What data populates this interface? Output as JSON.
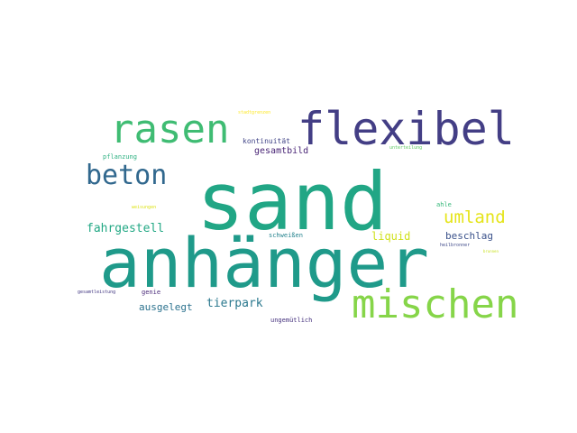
{
  "wordcloud": {
    "words": [
      {
        "text": "sand",
        "color": "#21a685"
      },
      {
        "text": "anhänger",
        "color": "#1f9a8a"
      },
      {
        "text": "flexibel",
        "color": "#433e85"
      },
      {
        "text": "rasen",
        "color": "#3fbc73"
      },
      {
        "text": "mischen",
        "color": "#86d549"
      },
      {
        "text": "beton",
        "color": "#31688e"
      },
      {
        "text": "umland",
        "color": "#e5e419"
      },
      {
        "text": "fahrgestell",
        "color": "#22a884"
      },
      {
        "text": "tierpark",
        "color": "#2a788e"
      },
      {
        "text": "ausgelegt",
        "color": "#2c728e"
      },
      {
        "text": "liquid",
        "color": "#d0e11c"
      },
      {
        "text": "beschlag",
        "color": "#3b528b"
      },
      {
        "text": "gesamtbild",
        "color": "#482475"
      },
      {
        "text": "kontinuität",
        "color": "#414487"
      },
      {
        "text": "pflanzung",
        "color": "#29af7f"
      },
      {
        "text": "ahle",
        "color": "#35b779"
      },
      {
        "text": "schweißen",
        "color": "#25838e"
      },
      {
        "text": "genie",
        "color": "#482878"
      },
      {
        "text": "ungemütlich",
        "color": "#46327e"
      },
      {
        "text": "stadtgrenzen",
        "color": "#fde725"
      },
      {
        "text": "unterteilung",
        "color": "#5ec962"
      },
      {
        "text": "weisungen",
        "color": "#dde318"
      },
      {
        "text": "heilbronner",
        "color": "#3e4989"
      },
      {
        "text": "gesamtleistung",
        "color": "#443983"
      },
      {
        "text": "brunnen",
        "color": "#c8e020"
      }
    ]
  }
}
